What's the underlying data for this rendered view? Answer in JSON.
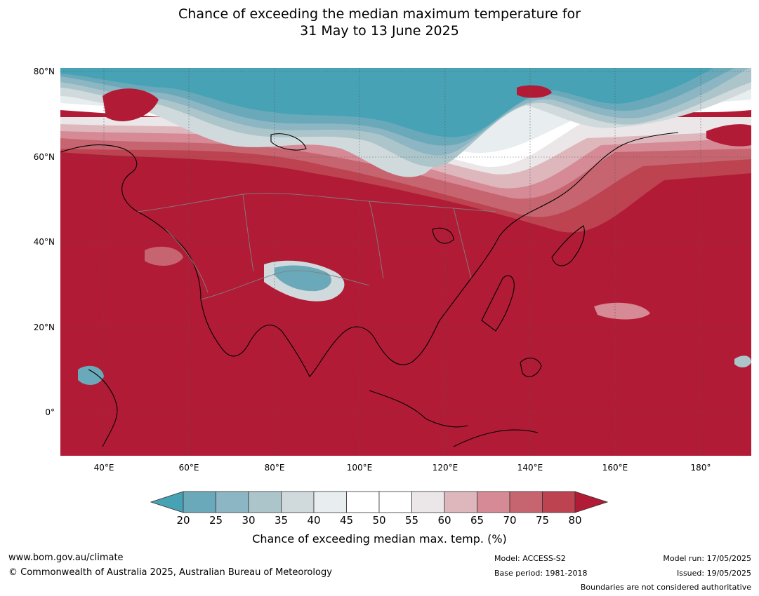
{
  "title": {
    "line1": "Chance of exceeding the median maximum temperature for",
    "line2": "31 May to 13 June 2025"
  },
  "map": {
    "lat_labels": [
      "80°N",
      "60°N",
      "40°N",
      "20°N",
      "0°"
    ],
    "lon_labels": [
      "40°E",
      "60°E",
      "80°E",
      "100°E",
      "120°E",
      "140°E",
      "160°E",
      "180°"
    ]
  },
  "colorbar": {
    "ticks": [
      "20",
      "25",
      "30",
      "35",
      "40",
      "45",
      "50",
      "55",
      "60",
      "65",
      "70",
      "75",
      "80"
    ],
    "bins": [
      {
        "range": "below 20",
        "color": "#47a2b5"
      },
      {
        "range": "20-25",
        "color": "#6aa9b9"
      },
      {
        "range": "25-30",
        "color": "#8cb6c3"
      },
      {
        "range": "30-35",
        "color": "#acc5ca"
      },
      {
        "range": "35-40",
        "color": "#d0dadc"
      },
      {
        "range": "40-45",
        "color": "#e8eef0"
      },
      {
        "range": "45-50",
        "color": "#ffffff"
      },
      {
        "range": "50-55",
        "color": "#ffffff"
      },
      {
        "range": "55-60",
        "color": "#ebe6e7"
      },
      {
        "range": "60-65",
        "color": "#deb7bd"
      },
      {
        "range": "65-70",
        "color": "#d58a95"
      },
      {
        "range": "70-75",
        "color": "#c66570"
      },
      {
        "range": "75-80",
        "color": "#bd4351"
      },
      {
        "range": "above 80",
        "color": "#b11b36"
      }
    ],
    "label": "Chance of exceeding median max. temp. (%)"
  },
  "footer": {
    "website": "www.bom.gov.au/climate",
    "copyright": "© Commonwealth of Australia 2025, Australian Bureau of Meteorology",
    "model": "Model: ACCESS-S2",
    "base_period": "Base period: 1981-2018",
    "model_run": "Model run: 17/05/2025",
    "issued": "Issued: 19/05/2025",
    "disclaimer": "Boundaries are not considered authoritative"
  }
}
